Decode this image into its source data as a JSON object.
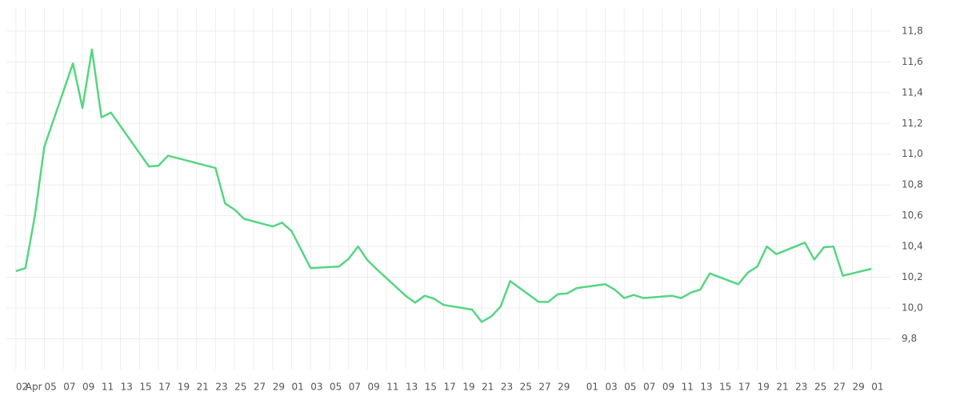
{
  "chart_data": {
    "type": "line",
    "x": [
      "04-02",
      "04-03",
      "04-04",
      "04-05",
      "04-08",
      "04-09",
      "04-10",
      "04-11",
      "04-12",
      "04-16",
      "04-17",
      "04-18",
      "04-23",
      "04-24",
      "04-25",
      "04-26",
      "04-29",
      "04-30",
      "05-01",
      "05-03",
      "05-06",
      "05-07",
      "05-08",
      "05-09",
      "05-10",
      "05-13",
      "05-14",
      "05-15",
      "05-16",
      "05-17",
      "05-20",
      "05-21",
      "05-22",
      "05-23",
      "05-24",
      "05-27",
      "05-28",
      "05-29",
      "05-30",
      "05-31",
      "06-03",
      "06-04",
      "06-05",
      "06-06",
      "06-07",
      "06-10",
      "06-11",
      "06-12",
      "06-13",
      "06-14",
      "06-17",
      "06-18",
      "06-19",
      "06-20",
      "06-21",
      "06-24",
      "06-25",
      "06-26",
      "06-27",
      "06-28",
      "07-01"
    ],
    "values": [
      10.24,
      10.26,
      10.6,
      11.05,
      11.59,
      11.3,
      11.68,
      11.24,
      11.27,
      10.92,
      10.925,
      10.99,
      10.91,
      10.68,
      10.64,
      10.58,
      10.53,
      10.555,
      10.5,
      10.26,
      10.27,
      10.32,
      10.4,
      10.31,
      10.25,
      10.08,
      10.035,
      10.08,
      10.06,
      10.02,
      9.99,
      9.91,
      9.945,
      10.01,
      10.175,
      10.04,
      10.04,
      10.09,
      10.095,
      10.13,
      10.155,
      10.12,
      10.065,
      10.085,
      10.065,
      10.08,
      10.065,
      10.1,
      10.12,
      10.225,
      10.155,
      10.23,
      10.27,
      10.4,
      10.35,
      10.425,
      10.315,
      10.395,
      10.4,
      10.21,
      10.255
    ],
    "color": "#55d681",
    "xlim": [
      "04-01",
      "07-03"
    ],
    "xticks": [
      {
        "value": "04-02",
        "label": "02"
      },
      {
        "value": "04-03",
        "label": "Apr"
      },
      {
        "value": "04-05",
        "label": "05"
      },
      {
        "value": "04-07",
        "label": "07"
      },
      {
        "value": "04-09",
        "label": "09"
      },
      {
        "value": "04-11",
        "label": "11"
      },
      {
        "value": "04-13",
        "label": "13"
      },
      {
        "value": "04-15",
        "label": "15"
      },
      {
        "value": "04-17",
        "label": "17"
      },
      {
        "value": "04-19",
        "label": "19"
      },
      {
        "value": "04-21",
        "label": "21"
      },
      {
        "value": "04-23",
        "label": "23"
      },
      {
        "value": "04-25",
        "label": "25"
      },
      {
        "value": "04-27",
        "label": "27"
      },
      {
        "value": "04-29",
        "label": "29"
      },
      {
        "value": "05-01",
        "label": "01"
      },
      {
        "value": "05-03",
        "label": "03"
      },
      {
        "value": "05-05",
        "label": "05"
      },
      {
        "value": "05-07",
        "label": "07"
      },
      {
        "value": "05-09",
        "label": "09"
      },
      {
        "value": "05-11",
        "label": "11"
      },
      {
        "value": "05-13",
        "label": "13"
      },
      {
        "value": "05-15",
        "label": "15"
      },
      {
        "value": "05-17",
        "label": "17"
      },
      {
        "value": "05-19",
        "label": "19"
      },
      {
        "value": "05-21",
        "label": "21"
      },
      {
        "value": "05-23",
        "label": "23"
      },
      {
        "value": "05-25",
        "label": "25"
      },
      {
        "value": "05-27",
        "label": "27"
      },
      {
        "value": "05-29",
        "label": "29"
      },
      {
        "value": "06-01",
        "label": "01"
      },
      {
        "value": "06-03",
        "label": "03"
      },
      {
        "value": "06-05",
        "label": "05"
      },
      {
        "value": "06-07",
        "label": "07"
      },
      {
        "value": "06-09",
        "label": "09"
      },
      {
        "value": "06-11",
        "label": "11"
      },
      {
        "value": "06-13",
        "label": "13"
      },
      {
        "value": "06-15",
        "label": "15"
      },
      {
        "value": "06-17",
        "label": "17"
      },
      {
        "value": "06-19",
        "label": "19"
      },
      {
        "value": "06-21",
        "label": "21"
      },
      {
        "value": "06-23",
        "label": "23"
      },
      {
        "value": "06-25",
        "label": "25"
      },
      {
        "value": "06-27",
        "label": "27"
      },
      {
        "value": "06-29",
        "label": "29"
      },
      {
        "value": "07-01",
        "label": "01"
      }
    ],
    "ylim": [
      9.6,
      11.95
    ],
    "yticks": [
      {
        "value": 9.8,
        "label": "9,8"
      },
      {
        "value": 10.0,
        "label": "10,0"
      },
      {
        "value": 10.2,
        "label": "10,2"
      },
      {
        "value": 10.4,
        "label": "10,4"
      },
      {
        "value": 10.6,
        "label": "10,6"
      },
      {
        "value": 10.8,
        "label": "10,8"
      },
      {
        "value": 11.0,
        "label": "11,0"
      },
      {
        "value": 11.2,
        "label": "11,2"
      },
      {
        "value": 11.4,
        "label": "11,4"
      },
      {
        "value": 11.6,
        "label": "11,6"
      },
      {
        "value": 11.8,
        "label": "11,8"
      }
    ],
    "grid": true
  }
}
